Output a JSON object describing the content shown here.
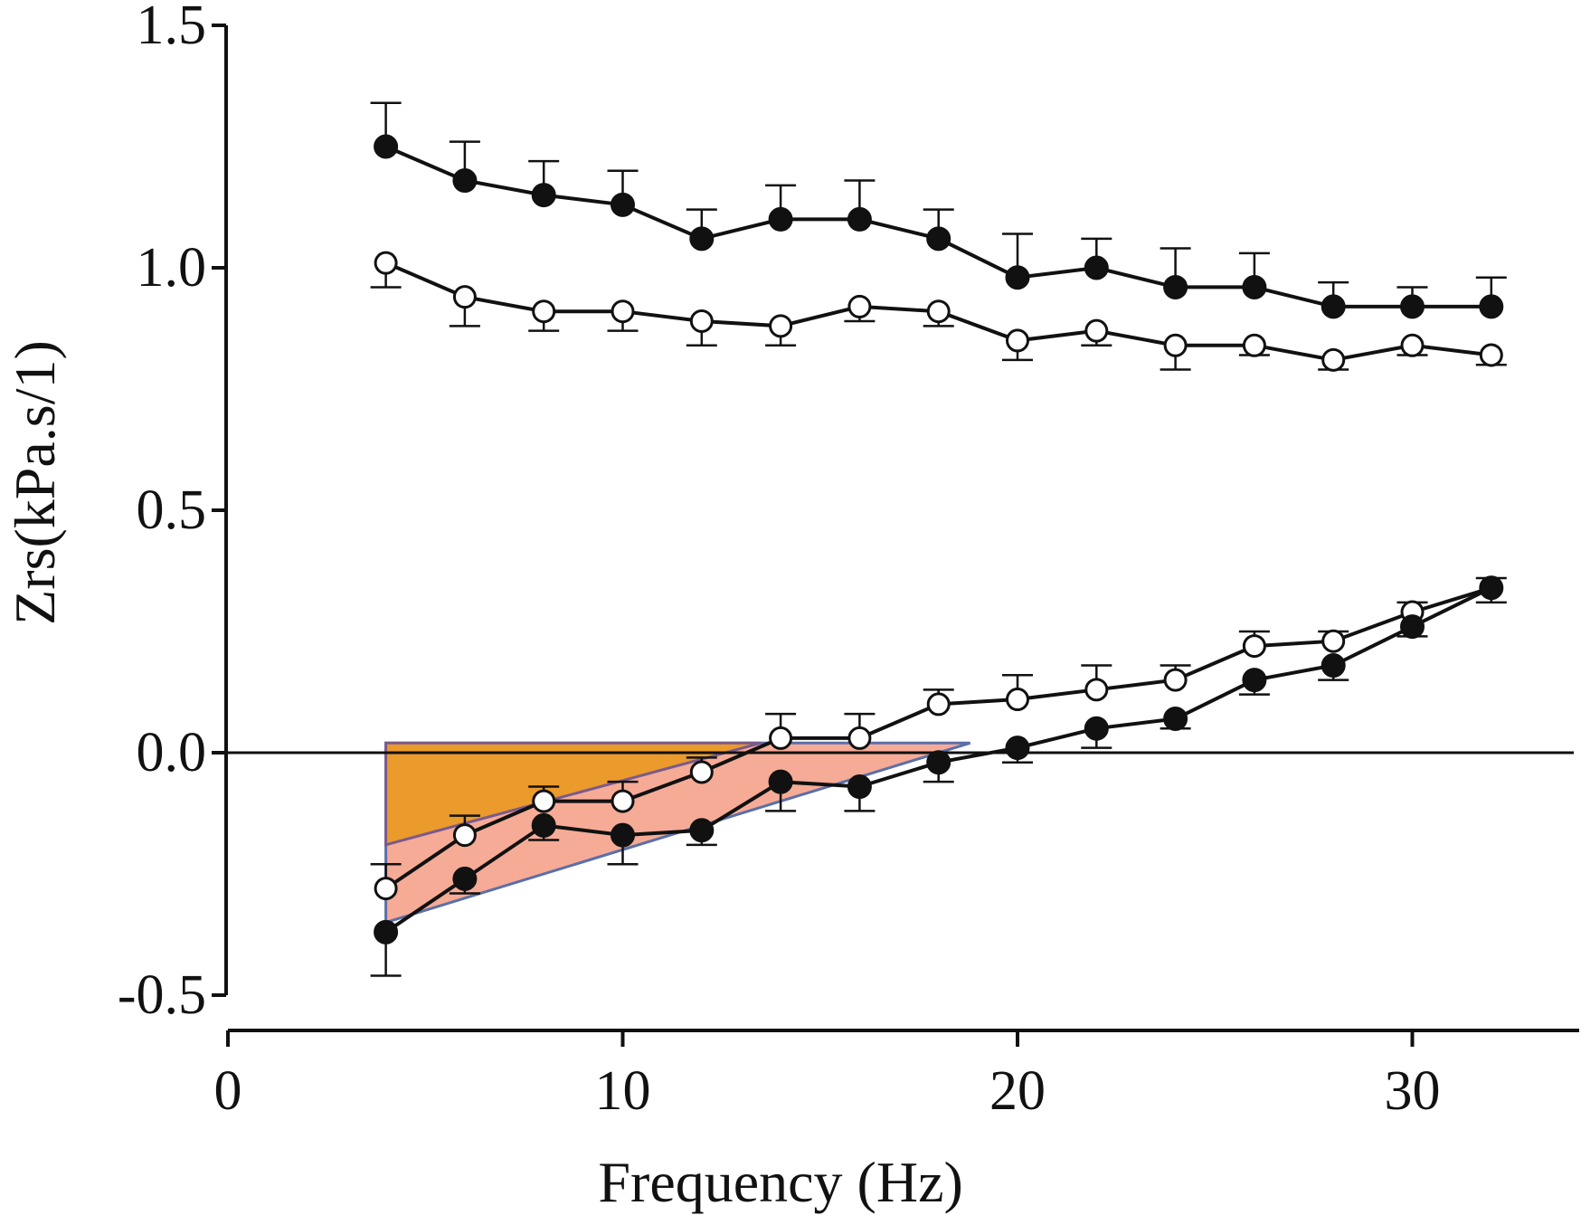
{
  "chart_data": {
    "type": "line",
    "xlabel": "Frequency (Hz)",
    "ylabel": "Zrs(kPa.s/1)",
    "xlim": [
      0,
      34
    ],
    "ylim": [
      -0.5,
      1.5
    ],
    "x_ticks": [
      {
        "value": 0,
        "label": "0"
      },
      {
        "value": 10,
        "label": "10"
      },
      {
        "value": 20,
        "label": "20"
      },
      {
        "value": 30,
        "label": "30"
      }
    ],
    "y_ticks": [
      {
        "value": 1.5,
        "label": "1.5"
      },
      {
        "value": 1.0,
        "label": "1.0"
      },
      {
        "value": 0.5,
        "label": "0.5"
      },
      {
        "value": 0.0,
        "label": "0.0"
      },
      {
        "value": -0.5,
        "label": "-0.5"
      }
    ],
    "grid": false,
    "reference_line_y": 0,
    "x": [
      4,
      6,
      8,
      10,
      12,
      14,
      16,
      18,
      20,
      22,
      24,
      26,
      28,
      30,
      32
    ],
    "series": [
      {
        "marker": "filled",
        "values": [
          1.25,
          1.18,
          1.15,
          1.13,
          1.06,
          1.1,
          1.1,
          1.06,
          0.98,
          1.0,
          0.96,
          0.96,
          0.92,
          0.92,
          0.92
        ],
        "error": [
          0.09,
          0.08,
          0.07,
          0.07,
          0.06,
          0.07,
          0.08,
          0.06,
          0.09,
          0.06,
          0.08,
          0.07,
          0.05,
          0.04,
          0.06
        ],
        "error_dir": "up"
      },
      {
        "marker": "open",
        "values": [
          1.01,
          0.94,
          0.91,
          0.91,
          0.89,
          0.88,
          0.92,
          0.91,
          0.85,
          0.87,
          0.84,
          0.84,
          0.81,
          0.84,
          0.82
        ],
        "error": [
          0.05,
          0.06,
          0.04,
          0.04,
          0.05,
          0.04,
          0.03,
          0.03,
          0.04,
          0.03,
          0.05,
          0.02,
          0.02,
          0.02,
          0.02
        ],
        "error_dir": "down"
      },
      {
        "marker": "open",
        "values": [
          -0.28,
          -0.17,
          -0.1,
          -0.1,
          -0.04,
          0.03,
          0.03,
          0.1,
          0.11,
          0.13,
          0.15,
          0.22,
          0.23,
          0.29,
          0.34
        ],
        "error": [
          0.05,
          0.04,
          0.03,
          0.04,
          0.03,
          0.05,
          0.05,
          0.03,
          0.05,
          0.05,
          0.03,
          0.03,
          0.02,
          0.02,
          0.02
        ],
        "error_dir": "up"
      },
      {
        "marker": "filled",
        "values": [
          -0.37,
          -0.26,
          -0.15,
          -0.17,
          -0.16,
          -0.06,
          -0.07,
          -0.02,
          0.01,
          0.05,
          0.07,
          0.15,
          0.18,
          0.26,
          0.34
        ],
        "error": [
          0.09,
          0.03,
          0.03,
          0.06,
          0.03,
          0.06,
          0.05,
          0.04,
          0.03,
          0.04,
          0.02,
          0.03,
          0.03,
          0.02,
          0.03
        ],
        "error_dir": "down"
      }
    ],
    "shaded_regions": [
      {
        "color": "#f28b6e",
        "opacity": 0.72,
        "stroke": "#5b6fa8",
        "points": [
          [
            4,
            0.02
          ],
          [
            18.8,
            0.02
          ],
          [
            4,
            -0.35
          ]
        ]
      },
      {
        "color": "#eb9a2c",
        "opacity": 1,
        "stroke": "#7a5a8c",
        "points": [
          [
            4,
            0.02
          ],
          [
            13.5,
            0.02
          ],
          [
            4,
            -0.19
          ]
        ]
      }
    ]
  }
}
